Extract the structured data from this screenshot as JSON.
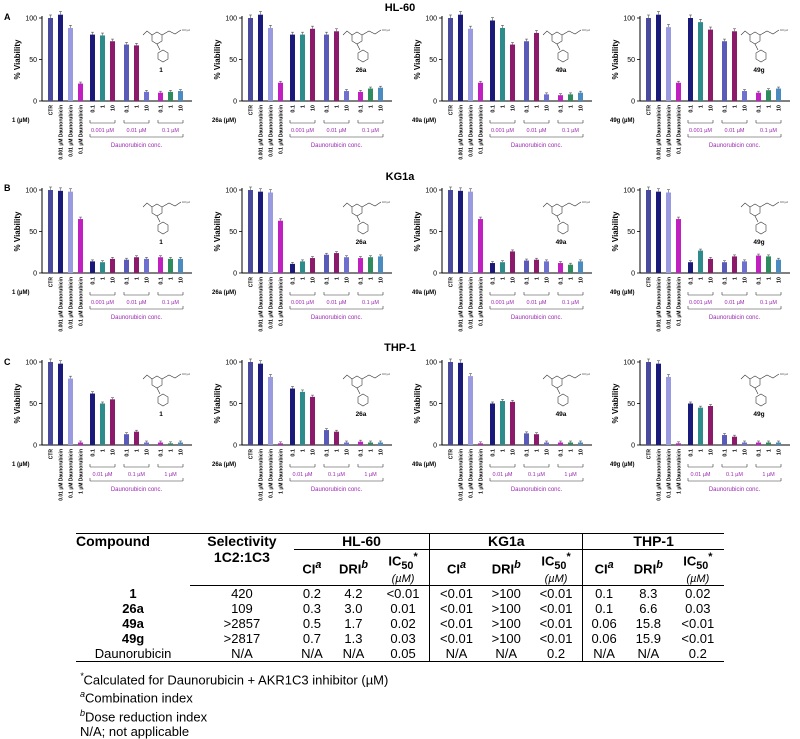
{
  "panels": [
    {
      "letter": "A",
      "title": "HL-60",
      "row_labels": [
        "CTR",
        "0.001 µM Daunorubicin",
        "0.01 µM Daunorubicin",
        "0.1 µM Daunorubicin"
      ],
      "group_doses": [
        "0.001 µM",
        "0.01 µM",
        "0.1 µM"
      ],
      "charts": [
        {
          "inhibitor": "1",
          "dose_label": "1 (µM)",
          "values": [
            100,
            104,
            88,
            21,
            80,
            79,
            72,
            68,
            67,
            11,
            10,
            11,
            12
          ]
        },
        {
          "inhibitor": "26a",
          "dose_label": "26a (µM)",
          "values": [
            100,
            104,
            88,
            22,
            80,
            80,
            87,
            80,
            84,
            12,
            11,
            15,
            16
          ]
        },
        {
          "inhibitor": "49a",
          "dose_label": "49a (µM)",
          "values": [
            100,
            104,
            87,
            22,
            97,
            88,
            68,
            72,
            82,
            8,
            7,
            8,
            10
          ]
        },
        {
          "inhibitor": "49g",
          "dose_label": "49g (µM)",
          "values": [
            100,
            104,
            89,
            22,
            100,
            95,
            86,
            72,
            84,
            12,
            10,
            13,
            15
          ]
        }
      ]
    },
    {
      "letter": "B",
      "title": "KG1a",
      "row_labels": [
        "CTR",
        "0.001 µM Daunorubicin",
        "0.01 µM Daunorubicin",
        "0.1 µM Daunorubicin"
      ],
      "group_doses": [
        "0.001 µM",
        "0.01 µM",
        "0.1 µM"
      ],
      "charts": [
        {
          "inhibitor": "1",
          "dose_label": "1 (µM)",
          "values": [
            100,
            99,
            98,
            65,
            14,
            13,
            17,
            16,
            19,
            17,
            19,
            17,
            17
          ]
        },
        {
          "inhibitor": "26a",
          "dose_label": "26a (µM)",
          "values": [
            100,
            98,
            97,
            63,
            11,
            14,
            18,
            22,
            24,
            19,
            18,
            19,
            20
          ]
        },
        {
          "inhibitor": "49a",
          "dose_label": "49a (µM)",
          "values": [
            100,
            99,
            98,
            65,
            12,
            13,
            26,
            15,
            16,
            14,
            12,
            10,
            14
          ]
        },
        {
          "inhibitor": "49g",
          "dose_label": "49g (µM)",
          "values": [
            100,
            98,
            97,
            65,
            13,
            27,
            17,
            13,
            20,
            14,
            21,
            20,
            16
          ]
        }
      ]
    },
    {
      "letter": "C",
      "title": "THP-1",
      "row_labels": [
        "CTR",
        "0.01 µM Daunorubicin",
        "0.1 µM Daunorubicin",
        "1 µM Daunorubicin"
      ],
      "group_doses": [
        "0.01 µM",
        "0.1 µM",
        "1 µM"
      ],
      "charts": [
        {
          "inhibitor": "1",
          "dose_label": "1 (µM)",
          "values": [
            100,
            98,
            80,
            3,
            62,
            50,
            55,
            13,
            16,
            3,
            3,
            2,
            3
          ]
        },
        {
          "inhibitor": "26a",
          "dose_label": "26a (µM)",
          "values": [
            100,
            98,
            82,
            2,
            68,
            64,
            58,
            18,
            16,
            3,
            4,
            3,
            3
          ]
        },
        {
          "inhibitor": "49a",
          "dose_label": "49a (µM)",
          "values": [
            100,
            99,
            83,
            2,
            50,
            53,
            52,
            14,
            13,
            3,
            3,
            3,
            3
          ]
        },
        {
          "inhibitor": "49g",
          "dose_label": "49g (µM)",
          "values": [
            100,
            98,
            82,
            2,
            50,
            45,
            47,
            12,
            10,
            3,
            3,
            3,
            3
          ]
        }
      ]
    }
  ],
  "common": {
    "y_label": "% Viability",
    "y_ticks": [
      "0",
      "50",
      "100"
    ],
    "inhibitor_ticks": [
      "0.1",
      "1",
      "10",
      "0.1",
      "1",
      "10",
      "0.1",
      "1",
      "10"
    ],
    "x_title": "Daunorubicin conc."
  },
  "colors": {
    "ctr": "#4a4a9c",
    "d1": "#1a1a7a",
    "d2": "#9a9ae0",
    "d3": "#c020c0",
    "g1": [
      "#1a1a7a",
      "#2e8b8b",
      "#8b1a6b"
    ],
    "g2": [
      "#5a5ab8",
      "#8b1a6b",
      "#6f6fd0"
    ],
    "g3": [
      "#c020c0",
      "#2e8b5e",
      "#4a8bc0"
    ],
    "text_purple": "#9a2ab0"
  },
  "table": {
    "headers": {
      "compound": "Compound",
      "selectivity": "Selectivity",
      "selectivity2": "1C2:1C3",
      "groups": [
        "HL-60",
        "KG1a",
        "THP-1"
      ],
      "ci": "CI",
      "ci_sup": "a",
      "dri": "DRI",
      "dri_sup": "b",
      "ic50": "IC",
      "ic50_sub": "50",
      "ic50_star": "*",
      "ic50_unit": "(µM)"
    },
    "rows": [
      {
        "compound": "1",
        "selectivity": "420",
        "vals": [
          "0.2",
          "4.2",
          "<0.01",
          "<0.01",
          ">100",
          "<0.01",
          "0.1",
          "8.3",
          "0.02"
        ]
      },
      {
        "compound": "26a",
        "selectivity": "109",
        "vals": [
          "0.3",
          "3.0",
          "0.01",
          "<0.01",
          ">100",
          "<0.01",
          "0.1",
          "6.6",
          "0.03"
        ]
      },
      {
        "compound": "49a",
        "selectivity": ">2857",
        "vals": [
          "0.5",
          "1.7",
          "0.02",
          "<0.01",
          ">100",
          "<0.01",
          "0.06",
          "15.8",
          "<0.01"
        ]
      },
      {
        "compound": "49g",
        "selectivity": ">2817",
        "vals": [
          "0.7",
          "1.3",
          "0.03",
          "<0.01",
          ">100",
          "<0.01",
          "0.06",
          "15.9",
          "<0.01"
        ]
      },
      {
        "compound": "Daunorubicin",
        "selectivity": "N/A",
        "vals": [
          "N/A",
          "N/A",
          "0.05",
          "N/A",
          "N/A",
          "0.2",
          "N/A",
          "N/A",
          "0.2"
        ]
      }
    ],
    "notes": {
      "n1_star": "*",
      "n1": "Calculated for Daunorubicin + AKR1C3 inhibitor (µM)",
      "n2_sup": "a",
      "n2": "Combination index",
      "n3_sup": "b",
      "n3": "Dose reduction index",
      "n4": "N/A; not applicable"
    }
  }
}
